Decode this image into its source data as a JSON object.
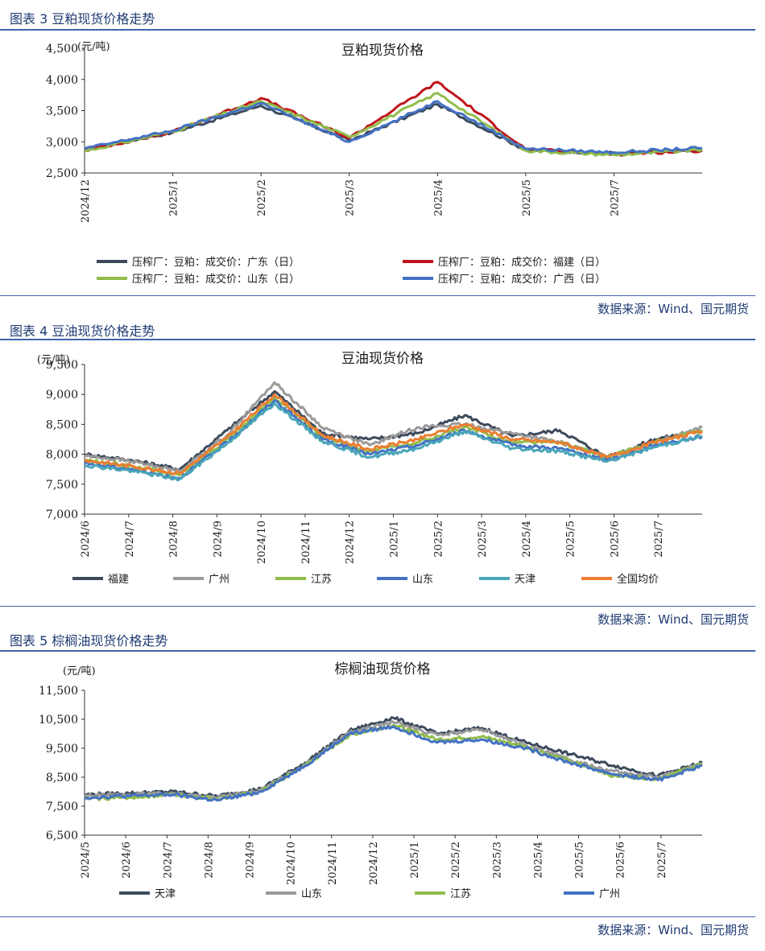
{
  "figures": [
    {
      "heading": "图表 3  豆粕现货价格走势",
      "source": "数据来源：Wind、国元期货",
      "chart_data": {
        "type": "line",
        "title": "豆粕现货价格",
        "unit_label": "(元/吨)",
        "ylim": [
          2500,
          4500
        ],
        "y_ticks": [
          "4,500",
          "4,000",
          "3,500",
          "3,000",
          "2,500"
        ],
        "x_ticks": [
          "2024/12",
          "2025/1",
          "2025/2",
          "2025/3",
          "2025/4",
          "2025/5",
          "2025/7"
        ],
        "grid": false,
        "series": [
          {
            "name": "压榨厂：豆粕：成交价：广东（日）",
            "color": "#3c4a5c",
            "x": [
              0,
              1,
              2,
              3,
              4,
              5,
              6,
              7
            ],
            "values": [
              2880,
              3150,
              3580,
              3020,
              3600,
              2870,
              2820,
              2860
            ]
          },
          {
            "name": "压榨厂：豆粕：成交价：福建（日）",
            "color": "#c0141c",
            "x": [
              0,
              1,
              2,
              3,
              4,
              5,
              6,
              7
            ],
            "values": [
              2860,
              3160,
              3700,
              3060,
              3960,
              2880,
              2800,
              2860
            ]
          },
          {
            "name": "压榨厂：豆粕：成交价：山东（日）",
            "color": "#8fbd4a",
            "x": [
              0,
              1,
              2,
              3,
              4,
              5,
              6,
              7
            ],
            "values": [
              2850,
              3170,
              3650,
              3080,
              3780,
              2860,
              2790,
              2870
            ]
          },
          {
            "name": "压榨厂：豆粕：成交价：广西（日）",
            "color": "#4472c4",
            "x": [
              0,
              1,
              2,
              3,
              4,
              5,
              6,
              7
            ],
            "values": [
              2890,
              3180,
              3620,
              3000,
              3650,
              2890,
              2830,
              2900
            ]
          }
        ]
      }
    },
    {
      "heading": "图表 4  豆油现货价格走势",
      "source": "数据来源：Wind、国元期货",
      "chart_data": {
        "type": "line",
        "title": "豆油现货价格",
        "unit_label": "(元/吨)",
        "ylim": [
          7000,
          9500
        ],
        "y_ticks": [
          "9,500",
          "9,000",
          "8,500",
          "8,000",
          "7,500",
          "7,000"
        ],
        "x_ticks": [
          "2024/6",
          "2024/7",
          "2024/8",
          "2024/9",
          "2024/10",
          "2024/11",
          "2024/12",
          "2025/1",
          "2025/2",
          "2025/3",
          "2025/4",
          "2025/5",
          "2025/6",
          "2025/7"
        ],
        "grid": false,
        "series": [
          {
            "name": "福建",
            "color": "#3c4a5c",
            "x": [
              0,
              1,
              2,
              3,
              4,
              5,
              6,
              7,
              8,
              9,
              10,
              11,
              12,
              13
            ],
            "values": [
              8000,
              7900,
              7750,
              8400,
              9050,
              8350,
              8250,
              8350,
              8650,
              8300,
              8400,
              7950,
              8250,
              8400
            ]
          },
          {
            "name": "广州",
            "color": "#9a9a9a",
            "x": [
              0,
              1,
              2,
              3,
              4,
              5,
              6,
              7,
              8,
              9,
              10,
              11,
              12,
              13
            ],
            "values": [
              7980,
              7880,
              7720,
              8320,
              9200,
              8450,
              8150,
              8450,
              8500,
              8350,
              8200,
              7950,
              8200,
              8450
            ]
          },
          {
            "name": "江苏",
            "color": "#8fbd4a",
            "x": [
              0,
              1,
              2,
              3,
              4,
              5,
              6,
              7,
              8,
              9,
              10,
              11,
              12,
              13
            ],
            "values": [
              7900,
              7800,
              7650,
              8250,
              8950,
              8300,
              8050,
              8200,
              8450,
              8200,
              8200,
              7950,
              8200,
              8400
            ]
          },
          {
            "name": "山东",
            "color": "#4472c4",
            "x": [
              0,
              1,
              2,
              3,
              4,
              5,
              6,
              7,
              8,
              9,
              10,
              11,
              12,
              13
            ],
            "values": [
              7850,
              7750,
              7600,
              8200,
              8900,
              8250,
              8000,
              8150,
              8400,
              8150,
              8100,
              7900,
              8150,
              8300
            ]
          },
          {
            "name": "天津",
            "color": "#4aa6b8",
            "x": [
              0,
              1,
              2,
              3,
              4,
              5,
              6,
              7,
              8,
              9,
              10,
              11,
              12,
              13
            ],
            "values": [
              7820,
              7720,
              7580,
              8180,
              8850,
              8220,
              7950,
              8100,
              8380,
              8100,
              8050,
              7880,
              8120,
              8300
            ]
          },
          {
            "name": "全国均价",
            "color": "#ed7d31",
            "x": [
              0,
              1,
              2,
              3,
              4,
              5,
              6,
              7,
              8,
              9,
              10,
              11,
              12,
              13
            ],
            "values": [
              7900,
              7800,
              7680,
              8280,
              9000,
              8320,
              8080,
              8250,
              8500,
              8250,
              8200,
              7950,
              8200,
              8380
            ]
          }
        ]
      }
    },
    {
      "heading": "图表 5  棕榈油现货价格走势",
      "source": "数据来源：Wind、国元期货",
      "chart_data": {
        "type": "line",
        "title": "棕榈油现货价格",
        "unit_label": "(元/吨)",
        "ylim": [
          6500,
          11500
        ],
        "y_ticks": [
          "11,500",
          "10,500",
          "9,500",
          "8,500",
          "7,500",
          "6,500"
        ],
        "x_ticks": [
          "2024/5",
          "2024/6",
          "2024/7",
          "2024/8",
          "2024/9",
          "2024/10",
          "2024/11",
          "2024/12",
          "2025/1",
          "2025/2",
          "2025/3",
          "2025/4",
          "2025/5",
          "2025/6",
          "2025/7"
        ],
        "grid": false,
        "series": [
          {
            "name": "天津",
            "color": "#3c4a5c",
            "x": [
              0,
              1,
              2,
              3,
              4,
              5,
              6,
              7,
              8,
              9,
              10,
              11,
              12,
              13,
              14
            ],
            "values": [
              7900,
              7950,
              8000,
              7850,
              8100,
              9000,
              10100,
              10550,
              10000,
              10200,
              9700,
              9300,
              8900,
              8550,
              9000
            ]
          },
          {
            "name": "山东",
            "color": "#9a9a9a",
            "x": [
              0,
              1,
              2,
              3,
              4,
              5,
              6,
              7,
              8,
              9,
              10,
              11,
              12,
              13,
              14
            ],
            "values": [
              7850,
              7900,
              7950,
              7800,
              8050,
              8950,
              10050,
              10400,
              9950,
              10150,
              9600,
              9100,
              8700,
              8500,
              8950
            ]
          },
          {
            "name": "江苏",
            "color": "#8fbd4a",
            "x": [
              0,
              1,
              2,
              3,
              4,
              5,
              6,
              7,
              8,
              9,
              10,
              11,
              12,
              13,
              14
            ],
            "values": [
              7750,
              7800,
              7900,
              7750,
              8000,
              8900,
              9950,
              10300,
              9800,
              9900,
              9550,
              9050,
              8550,
              8450,
              8950
            ]
          },
          {
            "name": "广州",
            "color": "#4472c4",
            "x": [
              0,
              1,
              2,
              3,
              4,
              5,
              6,
              7,
              8,
              9,
              10,
              11,
              12,
              13,
              14
            ],
            "values": [
              7800,
              7850,
              7900,
              7700,
              8000,
              8900,
              10000,
              10250,
              9700,
              9800,
              9500,
              9000,
              8600,
              8400,
              8900
            ]
          }
        ]
      }
    }
  ]
}
